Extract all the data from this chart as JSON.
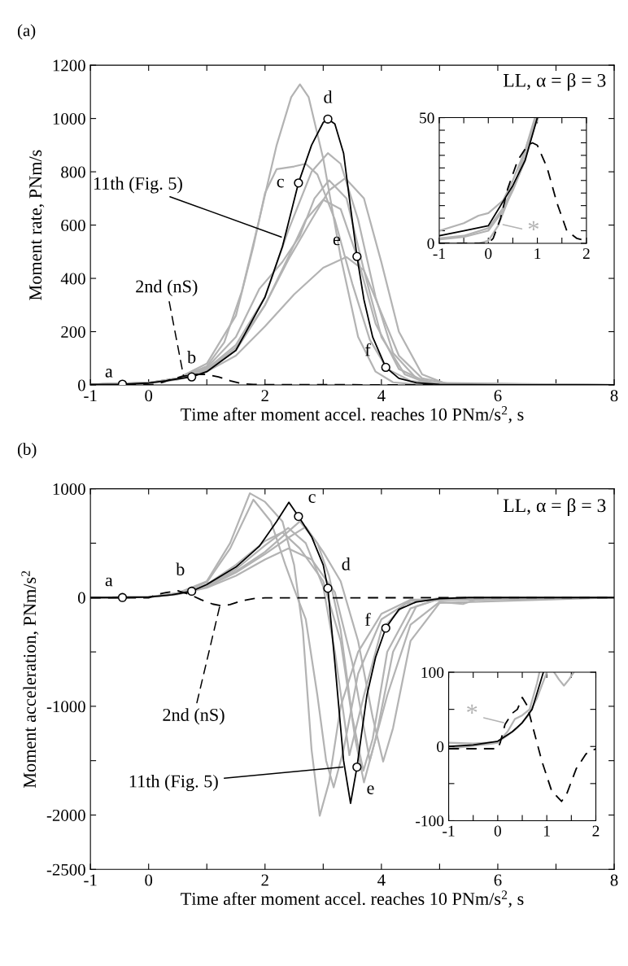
{
  "chart_data": [
    {
      "type": "line",
      "title": "(a)",
      "xlabel": "Time after moment accel. reaches 10 PNm/s$^{2}$, s",
      "ylabel": "Moment rate, PNm/s",
      "xlim": [
        -1,
        8
      ],
      "ylim": [
        0,
        1200
      ],
      "xticks": [
        -1,
        0,
        {
          "value": 1,
          "label": null
        },
        2,
        {
          "value": 3,
          "label": null
        },
        4,
        {
          "value": 5,
          "label": null
        },
        6,
        {
          "value": 7,
          "label": null
        },
        8
      ],
      "yticks": [
        0,
        200,
        400,
        600,
        800,
        1000,
        1200
      ],
      "grid": false,
      "legend": false,
      "series": [
        {
          "color": "#b3b3b3",
          "x": [
            -1,
            0,
            0.5,
            1,
            1.3,
            1.6,
            1.9,
            2.2,
            2.45,
            2.6,
            2.75,
            3.0,
            3.3,
            3.6,
            3.9,
            4.2,
            4.6,
            8
          ],
          "values": [
            2,
            8,
            25,
            70,
            160,
            350,
            620,
            900,
            1080,
            1128,
            1080,
            850,
            480,
            180,
            50,
            10,
            2,
            0
          ]
        },
        {
          "color": "#b3b3b3",
          "x": [
            -1,
            0,
            0.5,
            1,
            1.5,
            1.8,
            2.0,
            2.2,
            2.5,
            2.7,
            2.9,
            3.2,
            3.5,
            3.8,
            4.1,
            4.5,
            5,
            8
          ],
          "values": [
            2,
            8,
            25,
            80,
            260,
            520,
            720,
            810,
            820,
            830,
            790,
            620,
            380,
            170,
            60,
            15,
            3,
            0
          ]
        },
        {
          "color": "#b3b3b3",
          "x": [
            -1,
            0,
            0.5,
            1,
            1.5,
            2,
            2.4,
            2.8,
            3.08,
            3.3,
            3.6,
            3.9,
            4.2,
            4.6,
            5,
            8
          ],
          "values": [
            2,
            8,
            25,
            60,
            150,
            330,
            580,
            800,
            870,
            830,
            620,
            330,
            120,
            25,
            4,
            0
          ]
        },
        {
          "color": "#b3b3b3",
          "x": [
            -1,
            0,
            0.5,
            1,
            1.5,
            2,
            2.4,
            2.8,
            3.1,
            3.38,
            3.7,
            4.0,
            4.3,
            4.7,
            5.1,
            8
          ],
          "values": [
            2,
            7,
            22,
            55,
            130,
            300,
            470,
            620,
            730,
            776,
            700,
            460,
            200,
            40,
            5,
            0
          ]
        },
        {
          "color": "#b3b3b3",
          "x": [
            -1,
            0,
            0.5,
            1,
            1.5,
            1.9,
            2.3,
            2.6,
            2.85,
            3.1,
            3.4,
            3.7,
            4.0,
            4.4,
            4.8,
            8
          ],
          "values": [
            2,
            8,
            25,
            65,
            180,
            360,
            462,
            560,
            700,
            768,
            700,
            430,
            180,
            40,
            6,
            0
          ]
        },
        {
          "color": "#b3b3b3",
          "x": [
            -1,
            0,
            0.5,
            1,
            1.5,
            2,
            2.4,
            2.7,
            3.0,
            3.3,
            3.6,
            3.9,
            4.3,
            4.8,
            8
          ],
          "values": [
            2,
            7,
            22,
            55,
            140,
            300,
            480,
            620,
            695,
            660,
            470,
            230,
            60,
            8,
            0
          ]
        },
        {
          "color": "#b3b3b3",
          "x": [
            -1,
            0,
            0.5,
            1,
            1.5,
            2,
            2.5,
            3.0,
            3.4,
            3.7,
            4.0,
            4.3,
            4.7,
            5.2,
            8
          ],
          "values": [
            2,
            7,
            20,
            50,
            110,
            220,
            340,
            440,
            480,
            430,
            270,
            110,
            25,
            3,
            0
          ]
        },
        {
          "color": "#000000",
          "x": [
            -1,
            -0.45,
            0,
            0.3,
            0.5,
            0.74,
            1.0,
            1.5,
            2.0,
            2.3,
            2.575,
            2.8,
            3.0,
            3.08,
            3.2,
            3.35,
            3.45,
            3.58,
            3.7,
            3.85,
            4.075,
            4.3,
            4.6,
            5,
            6,
            8
          ],
          "values": [
            2,
            3,
            7,
            16,
            23,
            30,
            50,
            130,
            330,
            520,
            758,
            900,
            985,
            998,
            980,
            870,
            700,
            482,
            320,
            180,
            66,
            25,
            8,
            2,
            0,
            0
          ]
        },
        {
          "color": "#000000",
          "line_style": "dashed",
          "x": [
            -1,
            0,
            0.1,
            0.25,
            0.4,
            0.6,
            0.8,
            0.9,
            1.0,
            1.2,
            1.4,
            1.6,
            1.8,
            2.0,
            8
          ],
          "values": [
            0,
            0,
            2,
            10,
            22,
            33,
            39,
            40,
            39,
            30,
            16,
            5,
            2,
            1,
            0
          ]
        },
        {
          "type": "scatter",
          "marker": "circle",
          "color": "#000000",
          "x": [
            -0.45,
            0.74,
            2.575,
            3.08,
            3.58,
            4.075
          ],
          "values": [
            3,
            30,
            758,
            998,
            482,
            66
          ]
        }
      ],
      "annotations": [
        "LL, α = β = 3",
        {
          "text": "a",
          "x": -0.45,
          "y": 3
        },
        {
          "text": "b",
          "x": 0.74,
          "y": 30
        },
        {
          "text": "c",
          "x": 2.575,
          "y": 758
        },
        {
          "text": "d",
          "x": 3.08,
          "y": 998
        },
        {
          "text": "e",
          "x": 3.58,
          "y": 482
        },
        {
          "text": "f",
          "x": 4.075,
          "y": 66
        },
        {
          "text": "11th (Fig. 5)",
          "x": 2.28,
          "y": 555
        },
        {
          "text": "2nd (nS)",
          "x": 0.6,
          "y": 33
        }
      ]
    },
    {
      "type": "line",
      "xlim": [
        -1,
        2
      ],
      "ylim": [
        0,
        50
      ],
      "xticks": [
        -1,
        {
          "value": -0.5,
          "label": null
        },
        0,
        {
          "value": 0.5,
          "label": null
        },
        1,
        {
          "value": 1.5,
          "label": null
        },
        2
      ],
      "yticks": [
        0,
        {
          "value": 5,
          "label": null
        },
        {
          "value": 10,
          "label": null
        },
        {
          "value": 15,
          "label": null
        },
        {
          "value": 20,
          "label": null
        },
        {
          "value": 25,
          "label": null
        },
        {
          "value": 30,
          "label": null
        },
        {
          "value": 35,
          "label": null
        },
        {
          "value": 40,
          "label": null
        },
        {
          "value": 45,
          "label": null
        },
        50
      ],
      "grid": false,
      "legend": false,
      "series": [
        {
          "color": "#b3b3b3",
          "x": [
            -1,
            -0.5,
            -0.2,
            0,
            0.3,
            0.5,
            0.75,
            0.95
          ],
          "values": [
            5,
            8,
            11,
            12,
            17,
            25,
            37,
            50
          ]
        },
        {
          "color": "#b3b3b3",
          "x": [
            -1,
            -0.5,
            0,
            0.3,
            0.5,
            0.75,
            0.97
          ],
          "values": [
            2,
            3,
            6,
            14,
            22,
            34,
            50
          ]
        },
        {
          "color": "#b3b3b3",
          "x": [
            -1,
            -0.5,
            0,
            0.3,
            0.5,
            0.75,
            0.99
          ],
          "values": [
            1.5,
            2.5,
            5,
            13,
            21,
            33,
            50
          ]
        },
        {
          "color": "#b3b3b3",
          "x": [
            -1,
            -0.2,
            0,
            0.2,
            0.4,
            0.6,
            0.8,
            1.02
          ],
          "values": [
            0,
            0,
            1,
            7,
            17,
            27,
            40,
            50
          ]
        },
        {
          "color": "#000000",
          "x": [
            -1,
            -0.5,
            0,
            0.25,
            0.5,
            0.75,
            1.0
          ],
          "values": [
            3,
            5,
            7,
            15,
            23,
            33,
            50
          ]
        },
        {
          "color": "#000000",
          "line_style": "dashed",
          "x": [
            -1,
            0,
            0.1,
            0.25,
            0.4,
            0.6,
            0.8,
            0.9,
            1.0,
            1.2,
            1.4,
            1.6,
            1.8,
            2.0
          ],
          "values": [
            0,
            0,
            2,
            10,
            22,
            33,
            39,
            40,
            39,
            30,
            16,
            5,
            2,
            1
          ]
        }
      ],
      "annotations": [
        {
          "text": "*",
          "x": 0.3,
          "y": 7.4
        }
      ]
    },
    {
      "type": "line",
      "title": "(b)",
      "xlabel": "Time after moment accel. reaches 10 PNm/s$^{2}$, s",
      "ylabel": "Moment acceleration, PNm/s$^{2}$",
      "xlim": [
        -1,
        8
      ],
      "ylim": [
        -2500,
        1000
      ],
      "xticks": [
        -1,
        0,
        {
          "value": 1,
          "label": null
        },
        2,
        {
          "value": 3,
          "label": null
        },
        4,
        {
          "value": 5,
          "label": null
        },
        6,
        {
          "value": 7,
          "label": null
        },
        8
      ],
      "yticks": [
        -2500,
        -2000,
        {
          "value": -1500,
          "label": null
        },
        -1000,
        {
          "value": -500,
          "label": null
        },
        0,
        {
          "value": 500,
          "label": null
        },
        1000
      ],
      "grid": false,
      "legend": false,
      "series": [
        {
          "color": "#b3b3b3",
          "x": [
            -1,
            0,
            0.5,
            1,
            1.4,
            1.74,
            2.0,
            2.3,
            2.5,
            2.65,
            2.8,
            2.94,
            3.1,
            3.3,
            3.6,
            4.0,
            4.5,
            8
          ],
          "values": [
            0,
            5,
            40,
            150,
            500,
            959,
            880,
            700,
            300,
            -300,
            -1400,
            -2007,
            -1700,
            -1000,
            -500,
            -150,
            -20,
            0
          ]
        },
        {
          "color": "#b3b3b3",
          "x": [
            -1,
            0,
            0.5,
            1,
            1.4,
            1.8,
            2.1,
            2.35,
            2.5,
            2.7,
            2.9,
            3.05,
            3.18,
            3.35,
            3.6,
            4.0,
            4.5,
            8
          ],
          "values": [
            0,
            5,
            40,
            140,
            450,
            900,
            700,
            300,
            80,
            -200,
            -900,
            -1500,
            -1746,
            -1400,
            -700,
            -200,
            -30,
            0
          ]
        },
        {
          "color": "#b3b3b3",
          "x": [
            -1,
            0,
            0.5,
            1,
            1.5,
            2,
            2.3,
            2.6,
            2.9,
            3.1,
            3.3,
            3.5,
            3.69,
            3.85,
            4.1,
            4.5,
            5,
            8
          ],
          "values": [
            0,
            5,
            35,
            110,
            240,
            420,
            560,
            700,
            500,
            200,
            -300,
            -1100,
            -1593,
            -1300,
            -500,
            -100,
            -10,
            0
          ]
        },
        {
          "color": "#b3b3b3",
          "x": [
            -1,
            0,
            0.5,
            1,
            1.5,
            2,
            2.4,
            2.7,
            3.0,
            3.3,
            3.6,
            3.85,
            4.03,
            4.2,
            4.5,
            5,
            8
          ],
          "values": [
            0,
            5,
            30,
            100,
            230,
            400,
            550,
            650,
            420,
            150,
            -400,
            -1100,
            -1508,
            -1200,
            -400,
            -50,
            0
          ]
        },
        {
          "color": "#b3b3b3",
          "x": [
            -1,
            0,
            0.5,
            1,
            1.5,
            2,
            2.3,
            2.6,
            3.0,
            3.3,
            3.55,
            3.7,
            3.9,
            4.2,
            4.6,
            5,
            8
          ],
          "values": [
            0,
            5,
            35,
            120,
            300,
            520,
            600,
            450,
            150,
            -400,
            -1300,
            -1700,
            -1300,
            -500,
            -80,
            -10,
            0
          ]
        },
        {
          "color": "#b3b3b3",
          "x": [
            -1,
            0,
            0.5,
            1,
            1.5,
            2,
            2.4,
            2.8,
            3.2,
            3.5,
            3.8,
            4.1,
            4.5,
            5,
            5.4,
            5.7,
            8
          ],
          "values": [
            0,
            5,
            30,
            90,
            200,
            350,
            450,
            350,
            50,
            -600,
            -1500,
            -900,
            -250,
            -40,
            -60,
            -5,
            0
          ]
        },
        {
          "color": "#b3b3b3",
          "x": [
            -1,
            0,
            0.5,
            1,
            1.5,
            2,
            2.4,
            2.7,
            3.0,
            3.2,
            3.45,
            3.7,
            4.0,
            4.4,
            5,
            8
          ],
          "values": [
            0,
            5,
            35,
            110,
            260,
            480,
            640,
            500,
            100,
            -500,
            -1450,
            -900,
            -300,
            -60,
            -5,
            0
          ]
        },
        {
          "color": "#000000",
          "x": [
            -1,
            -0.45,
            0,
            0.4,
            0.74,
            1.0,
            1.5,
            1.9,
            2.2,
            2.41,
            2.575,
            2.8,
            3.0,
            3.08,
            3.2,
            3.35,
            3.47,
            3.58,
            3.75,
            3.9,
            4.075,
            4.3,
            4.6,
            5,
            5.5,
            8
          ],
          "values": [
            0,
            0,
            5,
            25,
            58,
            120,
            280,
            470,
            700,
            875,
            746,
            560,
            300,
            85,
            -600,
            -1500,
            -1892,
            -1559,
            -900,
            -550,
            -281,
            -110,
            -40,
            -10,
            0,
            0
          ]
        },
        {
          "color": "#000000",
          "line_style": "dashed",
          "x": [
            -1,
            0,
            0.15,
            0.3,
            0.5,
            0.7,
            0.9,
            1.1,
            1.25,
            1.4,
            1.6,
            1.8,
            2.0,
            8
          ],
          "values": [
            -3,
            -3,
            30,
            45,
            62,
            30,
            -20,
            -60,
            -75,
            -65,
            -30,
            -10,
            -3,
            0
          ]
        },
        {
          "type": "scatter",
          "marker": "circle",
          "color": "#000000",
          "x": [
            -0.45,
            0.74,
            2.575,
            3.08,
            3.58,
            4.075
          ],
          "values": [
            0,
            58,
            746,
            85,
            -1559,
            -281
          ]
        }
      ],
      "annotations": [
        "LL, α = β = 3",
        {
          "text": "a",
          "x": -0.45,
          "y": 0
        },
        {
          "text": "b",
          "x": 0.74,
          "y": 58
        },
        {
          "text": "c",
          "x": 2.575,
          "y": 746
        },
        {
          "text": "d",
          "x": 3.08,
          "y": 85
        },
        {
          "text": "e",
          "x": 3.58,
          "y": -1559
        },
        {
          "text": "f",
          "x": 4.075,
          "y": -281
        },
        {
          "text": "2nd (nS)",
          "x": 1.22,
          "y": -85
        },
        {
          "text": "11th (Fig. 5)",
          "x": 3.34,
          "y": -1559
        }
      ]
    },
    {
      "type": "line",
      "xlim": [
        -1,
        2
      ],
      "ylim": [
        -100,
        100
      ],
      "xticks": [
        -1,
        {
          "value": -0.5,
          "label": null
        },
        0,
        {
          "value": 0.5,
          "label": null
        },
        1,
        {
          "value": 1.5,
          "label": null
        },
        2
      ],
      "yticks": [
        -100,
        {
          "value": -50,
          "label": null
        },
        0,
        {
          "value": 50,
          "label": null
        },
        100
      ],
      "grid": false,
      "legend": false,
      "series": [
        {
          "color": "#b3b3b3",
          "x": [
            -1,
            -0.5,
            0,
            0.2,
            0.4,
            0.6,
            0.8,
            1.0
          ],
          "values": [
            5,
            4,
            6,
            15,
            25,
            40,
            65,
            100
          ]
        },
        {
          "color": "#b3b3b3",
          "x": [
            -1,
            -0.5,
            -0.2,
            0,
            0.2,
            0.35,
            0.5,
            0.65,
            0.8,
            0.85
          ],
          "values": [
            -3,
            1,
            3,
            5,
            20,
            37,
            42,
            50,
            85,
            100
          ]
        },
        {
          "color": "#b3b3b3",
          "x": [
            1.15,
            1.25,
            1.35,
            1.45,
            1.55
          ],
          "values": [
            100,
            90,
            82,
            90,
            100
          ]
        },
        {
          "color": "#000000",
          "x": [
            -1,
            -0.5,
            0,
            0.3,
            0.5,
            0.7,
            0.93
          ],
          "values": [
            0,
            2,
            7,
            20,
            32,
            50,
            100
          ]
        },
        {
          "color": "#000000",
          "line_style": "dashed",
          "x": [
            -1,
            0,
            0.05,
            0.15,
            0.3,
            0.4,
            0.5,
            0.6,
            0.7,
            0.9,
            1.1,
            1.3,
            1.4,
            1.6,
            1.8,
            2.0
          ],
          "values": [
            -3,
            -3,
            5,
            30,
            45,
            50,
            66,
            55,
            30,
            -20,
            -60,
            -74,
            -65,
            -30,
            -10,
            -3
          ]
        }
      ],
      "annotations": [
        {
          "text": "*",
          "x": 0.12,
          "y": 32
        }
      ]
    }
  ]
}
